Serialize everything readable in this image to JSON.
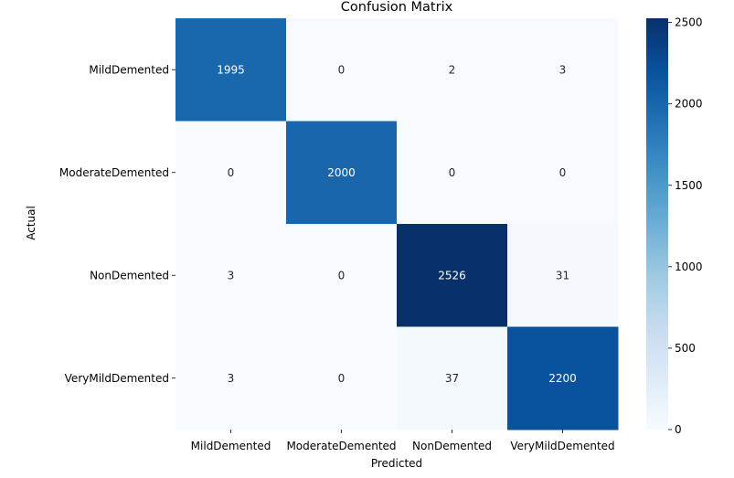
{
  "chart_data": {
    "type": "heatmap",
    "title": "Confusion Matrix",
    "xlabel": "Predicted",
    "ylabel": "Actual",
    "x_categories": [
      "MildDemented",
      "ModerateDemented",
      "NonDemented",
      "VeryMildDemented"
    ],
    "y_categories": [
      "MildDemented",
      "ModerateDemented",
      "NonDemented",
      "VeryMildDemented"
    ],
    "values": [
      [
        1995,
        0,
        2,
        3
      ],
      [
        0,
        2000,
        0,
        0
      ],
      [
        3,
        0,
        2526,
        31
      ],
      [
        3,
        0,
        37,
        2200
      ]
    ],
    "colormap": "Blues",
    "colormap_low": "#f7fbff",
    "colormap_high": "#08306b",
    "vmin": 0,
    "vmax": 2526,
    "colorbar_ticks": [
      0,
      500,
      1000,
      1500,
      2000,
      2500
    ],
    "annotation_dark_color": "#262626",
    "annotation_light_color": "#ffffff"
  }
}
